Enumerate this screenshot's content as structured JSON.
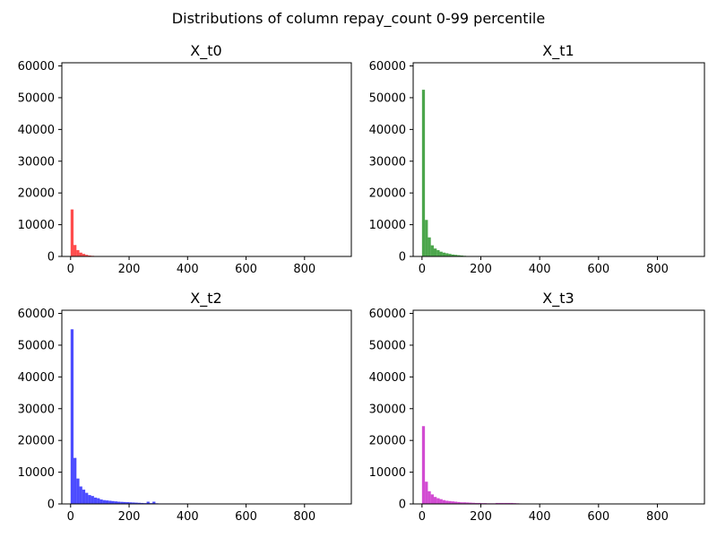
{
  "suptitle": "Distributions of column repay_count 0-99 percentile",
  "chart_data": [
    {
      "type": "bar",
      "title": "X_t0",
      "color": "#ff0000",
      "xlim": [
        -30,
        960
      ],
      "ylim": [
        0,
        61000
      ],
      "xticks": [
        0,
        200,
        400,
        600,
        800
      ],
      "yticks": [
        0,
        10000,
        20000,
        30000,
        40000,
        50000,
        60000
      ],
      "bin_width": 10,
      "bin_starts": [
        0,
        10,
        20,
        30,
        40,
        50,
        60,
        70,
        80,
        90
      ],
      "values": [
        14800,
        3600,
        2000,
        1200,
        800,
        500,
        300,
        200,
        100,
        100
      ]
    },
    {
      "type": "bar",
      "title": "X_t1",
      "color": "#008000",
      "xlim": [
        -30,
        960
      ],
      "ylim": [
        0,
        61000
      ],
      "xticks": [
        0,
        200,
        400,
        600,
        800
      ],
      "yticks": [
        0,
        10000,
        20000,
        30000,
        40000,
        50000,
        60000
      ],
      "bin_width": 10,
      "bin_starts": [
        0,
        10,
        20,
        30,
        40,
        50,
        60,
        70,
        80,
        90,
        100,
        110,
        120,
        130,
        140
      ],
      "values": [
        52500,
        11500,
        6000,
        3500,
        2500,
        2000,
        1500,
        1200,
        1000,
        800,
        600,
        500,
        400,
        300,
        200
      ]
    },
    {
      "type": "bar",
      "title": "X_t2",
      "color": "#0000ff",
      "xlim": [
        -30,
        960
      ],
      "ylim": [
        0,
        61000
      ],
      "xticks": [
        0,
        200,
        400,
        600,
        800
      ],
      "yticks": [
        0,
        10000,
        20000,
        30000,
        40000,
        50000,
        60000
      ],
      "bin_width": 10,
      "bin_starts": [
        0,
        10,
        20,
        30,
        40,
        50,
        60,
        70,
        80,
        90,
        100,
        110,
        120,
        130,
        140,
        150,
        160,
        170,
        180,
        190,
        200,
        210,
        220,
        230,
        240,
        250,
        260,
        270,
        280,
        290,
        300,
        310,
        320,
        330,
        340,
        350,
        360,
        370,
        380,
        390,
        400,
        410,
        420,
        430,
        440,
        450,
        460,
        470,
        480,
        490,
        500,
        510,
        520,
        530,
        540,
        550,
        560,
        570,
        580,
        590,
        600,
        610,
        620,
        630,
        640,
        650,
        660,
        670,
        680,
        690,
        700,
        710,
        720,
        730,
        740,
        750,
        760,
        770,
        780,
        790,
        800,
        810,
        820,
        830,
        840,
        850,
        860,
        870,
        880,
        890,
        900,
        910
      ],
      "values": [
        55000,
        14500,
        8000,
        5500,
        4500,
        3500,
        2800,
        2500,
        2000,
        1800,
        1400,
        1200,
        1100,
        1000,
        900,
        800,
        700,
        650,
        600,
        550,
        500,
        450,
        400,
        350,
        300,
        250,
        700,
        250,
        700,
        200,
        150,
        150,
        150,
        150,
        150,
        150,
        150,
        150,
        150,
        150,
        100,
        100,
        100,
        100,
        100,
        100,
        100,
        100,
        100,
        100,
        100,
        100,
        100,
        100,
        100,
        100,
        100,
        100,
        100,
        100,
        100,
        100,
        100,
        100,
        100,
        100,
        100,
        100,
        100,
        100,
        100,
        100,
        100,
        100,
        100,
        100,
        100,
        100,
        100,
        100,
        100,
        100,
        100,
        100,
        100,
        100,
        100,
        100,
        100,
        100,
        100,
        100
      ]
    },
    {
      "type": "bar",
      "title": "X_t3",
      "color": "#bf00bf",
      "xlim": [
        -30,
        960
      ],
      "ylim": [
        0,
        61000
      ],
      "xticks": [
        0,
        200,
        400,
        600,
        800
      ],
      "yticks": [
        0,
        10000,
        20000,
        30000,
        40000,
        50000,
        60000
      ],
      "bin_width": 10,
      "bin_starts": [
        0,
        10,
        20,
        30,
        40,
        50,
        60,
        70,
        80,
        90,
        100,
        110,
        120,
        130,
        140,
        150,
        160,
        170,
        180,
        190,
        200,
        210,
        220,
        230,
        240,
        250,
        260,
        270,
        280,
        290,
        300,
        310,
        320,
        330,
        340,
        350,
        360,
        370,
        380,
        390,
        400,
        410,
        420,
        430,
        440,
        450,
        460,
        470,
        480,
        490,
        500,
        510,
        520,
        530,
        540,
        550,
        560,
        570,
        580,
        590,
        600,
        610,
        620,
        630,
        640,
        650,
        660,
        670,
        680,
        690,
        700,
        710,
        720,
        730,
        740,
        750,
        760,
        770,
        780,
        790,
        800,
        810,
        820,
        830,
        840,
        850,
        860,
        870,
        880,
        890,
        900,
        910
      ],
      "values": [
        24500,
        7000,
        4000,
        3000,
        2200,
        1800,
        1500,
        1200,
        1000,
        900,
        800,
        700,
        600,
        500,
        500,
        450,
        400,
        350,
        300,
        300,
        250,
        250,
        200,
        200,
        200,
        300,
        300,
        300,
        300,
        300,
        300,
        250,
        200,
        150,
        100,
        100,
        100,
        100,
        100,
        100,
        80,
        80,
        80,
        80,
        80,
        80,
        80,
        80,
        80,
        80,
        80,
        80,
        80,
        80,
        80,
        80,
        80,
        80,
        80,
        80,
        80,
        80,
        80,
        80,
        80,
        80,
        80,
        80,
        80,
        80,
        80,
        80,
        80,
        80,
        80,
        80,
        80,
        80,
        80,
        80,
        80,
        80,
        80,
        80,
        80,
        80,
        80,
        80,
        80,
        80,
        80,
        80
      ]
    }
  ]
}
